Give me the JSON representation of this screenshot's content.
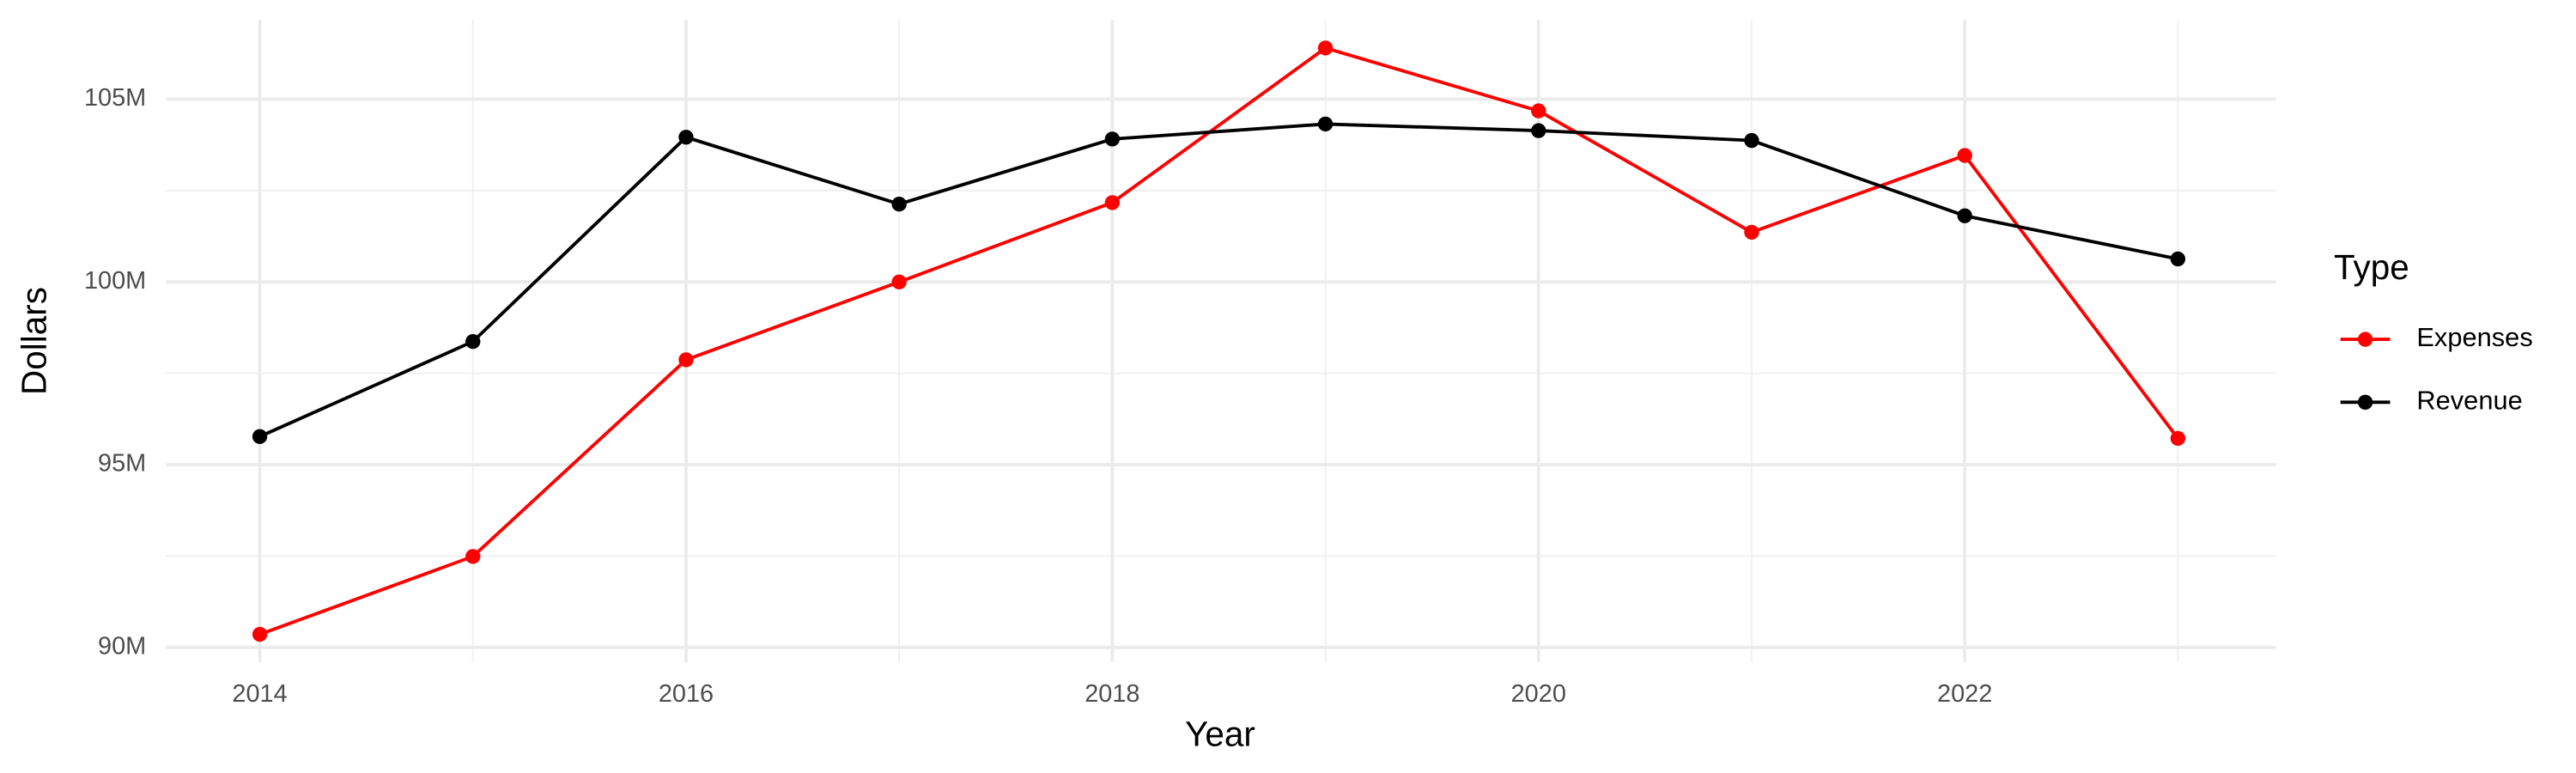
{
  "chart_data": {
    "type": "line",
    "x_label": "Year",
    "y_label": "Dollars",
    "legend_title": "Type",
    "legend_position": "right",
    "grid": true,
    "x": [
      2014,
      2015,
      2016,
      2017,
      2018,
      2019,
      2020,
      2021,
      2022,
      2023
    ],
    "series": [
      {
        "name": "Expenses",
        "color": "#ff0000",
        "values": [
          90360000,
          92490000,
          97870000,
          100000000,
          102170000,
          106400000,
          104680000,
          101360000,
          103460000,
          95720000
        ]
      },
      {
        "name": "Revenue",
        "color": "#000000",
        "values": [
          95770000,
          98370000,
          103960000,
          102130000,
          103910000,
          104320000,
          104140000,
          103870000,
          101810000,
          100630000
        ]
      }
    ],
    "xlim": [
      2013.56,
      2023.46
    ],
    "xticks": [
      2014,
      2016,
      2018,
      2020,
      2022
    ],
    "xminor_ticks": [
      2015,
      2017,
      2019,
      2021,
      2023
    ],
    "ylim": [
      89600000,
      107170000
    ],
    "yticks": [
      {
        "value": 90000000,
        "label": "90M"
      },
      {
        "value": 95000000,
        "label": "95M"
      },
      {
        "value": 100000000,
        "label": "100M"
      },
      {
        "value": 105000000,
        "label": "105M"
      }
    ],
    "yminor_ticks": [
      92500000,
      97500000,
      102500000
    ]
  }
}
